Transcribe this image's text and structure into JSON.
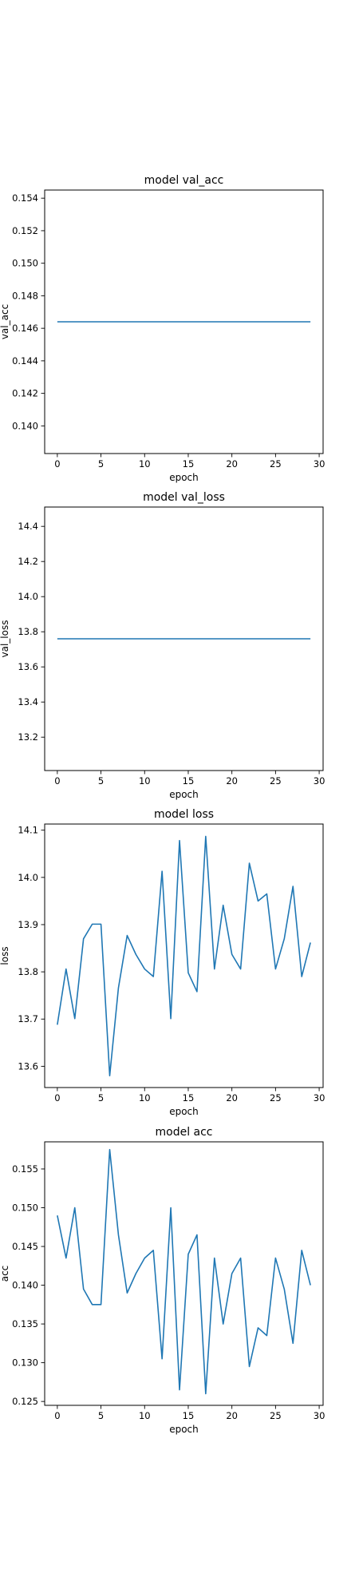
{
  "chart_data": [
    {
      "type": "line",
      "title": "model val_acc",
      "xlabel": "epoch",
      "ylabel": "val_acc",
      "xlim": [
        -1.45,
        30.45
      ],
      "ylim": [
        0.1383,
        0.1545
      ],
      "xticks": [
        0,
        5,
        10,
        15,
        20,
        25,
        30
      ],
      "yticks": [
        0.14,
        0.142,
        0.144,
        0.146,
        0.148,
        0.15,
        0.152,
        0.154
      ],
      "ytick_decimals": 3,
      "grid": false,
      "color": "#1f77b4",
      "x": [
        0,
        1,
        2,
        3,
        4,
        5,
        6,
        7,
        8,
        9,
        10,
        11,
        12,
        13,
        14,
        15,
        16,
        17,
        18,
        19,
        20,
        21,
        22,
        23,
        24,
        25,
        26,
        27,
        28,
        29
      ],
      "y": [
        0.1464,
        0.1464,
        0.1464,
        0.1464,
        0.1464,
        0.1464,
        0.1464,
        0.1464,
        0.1464,
        0.1464,
        0.1464,
        0.1464,
        0.1464,
        0.1464,
        0.1464,
        0.1464,
        0.1464,
        0.1464,
        0.1464,
        0.1464,
        0.1464,
        0.1464,
        0.1464,
        0.1464,
        0.1464,
        0.1464,
        0.1464,
        0.1464,
        0.1464,
        0.1464
      ]
    },
    {
      "type": "line",
      "title": "model val_loss",
      "xlabel": "epoch",
      "ylabel": "val_loss",
      "xlim": [
        -1.45,
        30.45
      ],
      "ylim": [
        13.01,
        14.51
      ],
      "xticks": [
        0,
        5,
        10,
        15,
        20,
        25,
        30
      ],
      "yticks": [
        13.2,
        13.4,
        13.6,
        13.8,
        14.0,
        14.2,
        14.4
      ],
      "ytick_decimals": 1,
      "grid": false,
      "color": "#1f77b4",
      "x": [
        0,
        1,
        2,
        3,
        4,
        5,
        6,
        7,
        8,
        9,
        10,
        11,
        12,
        13,
        14,
        15,
        16,
        17,
        18,
        19,
        20,
        21,
        22,
        23,
        24,
        25,
        26,
        27,
        28,
        29
      ],
      "y": [
        13.76,
        13.76,
        13.76,
        13.76,
        13.76,
        13.76,
        13.76,
        13.76,
        13.76,
        13.76,
        13.76,
        13.76,
        13.76,
        13.76,
        13.76,
        13.76,
        13.76,
        13.76,
        13.76,
        13.76,
        13.76,
        13.76,
        13.76,
        13.76,
        13.76,
        13.76,
        13.76,
        13.76,
        13.76,
        13.76
      ]
    },
    {
      "type": "line",
      "title": "model loss",
      "xlabel": "epoch",
      "ylabel": "loss",
      "xlim": [
        -1.45,
        30.45
      ],
      "ylim": [
        13.555,
        14.113
      ],
      "xticks": [
        0,
        5,
        10,
        15,
        20,
        25,
        30
      ],
      "yticks": [
        13.6,
        13.7,
        13.8,
        13.9,
        14.0,
        14.1
      ],
      "ytick_decimals": 1,
      "grid": false,
      "color": "#1f77b4",
      "x": [
        0,
        1,
        2,
        3,
        4,
        5,
        6,
        7,
        8,
        9,
        10,
        11,
        12,
        13,
        14,
        15,
        16,
        17,
        18,
        19,
        20,
        21,
        22,
        23,
        24,
        25,
        26,
        27,
        28,
        29
      ],
      "y": [
        13.688,
        13.806,
        13.701,
        13.87,
        13.901,
        13.901,
        13.58,
        13.766,
        13.877,
        13.837,
        13.806,
        13.79,
        14.013,
        13.701,
        14.078,
        13.798,
        13.758,
        14.087,
        13.806,
        13.941,
        13.837,
        13.806,
        14.03,
        13.95,
        13.965,
        13.806,
        13.87,
        13.981,
        13.79,
        13.862
      ]
    },
    {
      "type": "line",
      "title": "model acc",
      "xlabel": "epoch",
      "ylabel": "acc",
      "xlim": [
        -1.45,
        30.45
      ],
      "ylim": [
        0.1245,
        0.1585
      ],
      "xticks": [
        0,
        5,
        10,
        15,
        20,
        25,
        30
      ],
      "yticks": [
        0.125,
        0.13,
        0.135,
        0.14,
        0.145,
        0.15,
        0.155
      ],
      "ytick_decimals": 3,
      "grid": false,
      "color": "#1f77b4",
      "x": [
        0,
        1,
        2,
        3,
        4,
        5,
        6,
        7,
        8,
        9,
        10,
        11,
        12,
        13,
        14,
        15,
        16,
        17,
        18,
        19,
        20,
        21,
        22,
        23,
        24,
        25,
        26,
        27,
        28,
        29
      ],
      "y": [
        0.149,
        0.1435,
        0.15,
        0.1395,
        0.1375,
        0.1375,
        0.1575,
        0.1465,
        0.139,
        0.1415,
        0.1435,
        0.1445,
        0.1305,
        0.15,
        0.1265,
        0.144,
        0.1465,
        0.126,
        0.1435,
        0.135,
        0.1415,
        0.1435,
        0.1295,
        0.1345,
        0.1335,
        0.1435,
        0.1395,
        0.1325,
        0.1445,
        0.14
      ]
    }
  ]
}
